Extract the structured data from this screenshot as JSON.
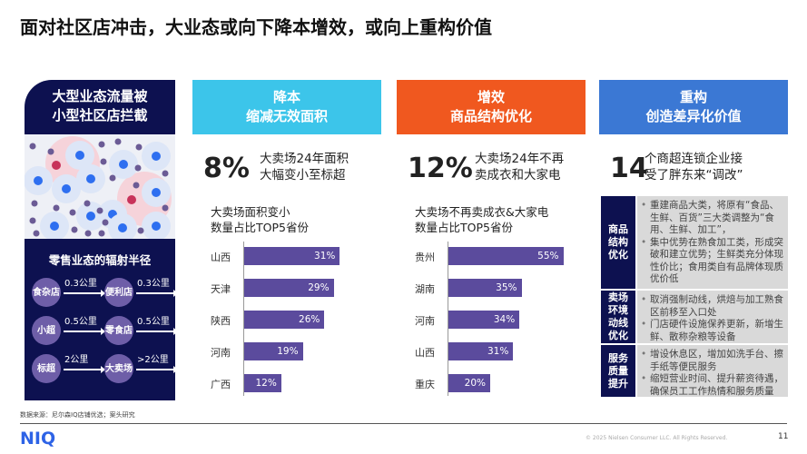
{
  "title": "面对社区店冲击，大业态或向下降本增效，或向上重构价值",
  "left_panel": {
    "heading_1": "大型业态流量被",
    "heading_2": "小型社区店拦截",
    "radius_title": "零售业态的辐射半径",
    "formats": [
      {
        "name": "食杂店",
        "distance": "0.3公里"
      },
      {
        "name": "便利店",
        "distance": "0.3公里"
      },
      {
        "name": "小超",
        "distance": "0.5公里"
      },
      {
        "name": "零食店",
        "distance": "0.5公里"
      },
      {
        "name": "标超",
        "distance": "2公里"
      },
      {
        "name": "大卖场",
        "distance": ">2公里"
      }
    ]
  },
  "columns": [
    {
      "head_1": "降本",
      "head_2": "缩减无效面积",
      "color": "#3cc5ea",
      "big": "8%",
      "stat_1": "大卖场24年面积",
      "stat_2": "大幅变小至标超",
      "chart_title_1": "大卖场面积变小",
      "chart_title_2": "数量占比TOP5省份"
    },
    {
      "head_1": "增效",
      "head_2": "商品结构优化",
      "color": "#f0581f",
      "big": "12%",
      "stat_1": "大卖场24年不再",
      "stat_2": "卖成衣和大家电",
      "chart_title_1": "大卖场不再卖成衣&大家电",
      "chart_title_2": "数量占比TOP5省份"
    },
    {
      "head_1": "重构",
      "head_2": "创造差异化价值",
      "color": "#3b78d4",
      "big": "14",
      "stat_1": "个商超连锁企业接",
      "stat_2": "受了胖东来“调改”"
    }
  ],
  "chart_data": [
    {
      "type": "bar",
      "title": "大卖场面积变小数量占比TOP5省份",
      "categories": [
        "山西",
        "天津",
        "陕西",
        "河南",
        "广西"
      ],
      "values": [
        31,
        29,
        26,
        19,
        12
      ],
      "labels": [
        "31%",
        "29%",
        "26%",
        "19%",
        "12%"
      ],
      "unit": "%"
    },
    {
      "type": "bar",
      "title": "大卖场不再卖成衣&大家电数量占比TOP5省份",
      "categories": [
        "贵州",
        "湖南",
        "河南",
        "山西",
        "重庆"
      ],
      "values": [
        55,
        35,
        34,
        31,
        20
      ],
      "labels": [
        "55%",
        "35%",
        "34%",
        "31%",
        "20%"
      ],
      "unit": "%"
    }
  ],
  "rebuild_table": [
    {
      "label": "商品结构优化",
      "points": [
        "重建商品大类，将原有“食品、生鲜、百货”三大类调整为“食用、生鲜、加工”，",
        "集中优势在熟食加工类，形成突破和建立优势；生鲜类充分体现性价比；食用类自有品牌体现质优价低"
      ]
    },
    {
      "label": "卖场环境动线优化",
      "points": [
        "取消强制动线，烘焙与加工熟食区前移至入口处",
        "门店硬件设施保养更新，新增生鲜、散称杂粮等设备"
      ]
    },
    {
      "label": "服务质量提升",
      "points": [
        "增设休息区，增加如洗手台、擦手纸等便民服务",
        "缩短营业时间、提升薪资待遇，确保员工工作热情和服务质量"
      ]
    }
  ],
  "footer": {
    "source": "数据来源：尼尔森IQ店铺优选；案头研究",
    "logo": "NIQ",
    "copyright": "© 2025 Nielsen Consumer LLC. All Rights Reserved.",
    "page": "11"
  }
}
